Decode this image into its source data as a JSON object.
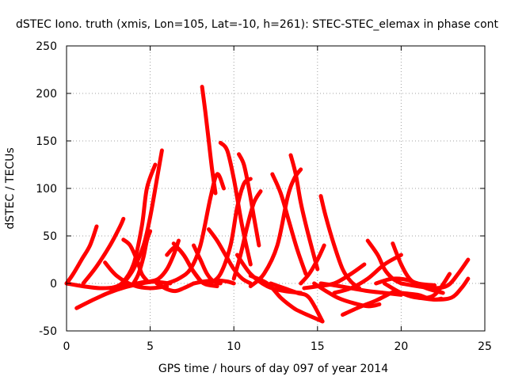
{
  "chart_data": {
    "type": "line",
    "title": "dSTEC Iono. truth (xmis, Lon=105, Lat=-10, h=261): STEC-STEC_elemax in phase cont",
    "xlabel": "GPS time / hours of day 097 of year 2014",
    "ylabel": "dSTEC  / TECUs",
    "xlim": [
      0,
      25
    ],
    "ylim": [
      -50,
      250
    ],
    "xticks": [
      0,
      5,
      10,
      15,
      20,
      25
    ],
    "yticks": [
      -50,
      0,
      50,
      100,
      150,
      200,
      250
    ],
    "grid": true,
    "series_color": "#ff0000",
    "series": [
      {
        "x": [
          0.0,
          0.4,
          0.9,
          1.4,
          1.8
        ],
        "y": [
          0,
          10,
          25,
          40,
          60
        ]
      },
      {
        "x": [
          1.0,
          1.8,
          2.6,
          3.2,
          3.4
        ],
        "y": [
          0,
          18,
          40,
          60,
          68
        ]
      },
      {
        "x": [
          0.0,
          1.0,
          2.0,
          3.0,
          4.2,
          5.0,
          6.2
        ],
        "y": [
          0,
          -3,
          -5,
          -4,
          0,
          2,
          0
        ]
      },
      {
        "x": [
          0.6,
          1.5,
          2.5,
          3.5,
          4.5,
          5.2
        ],
        "y": [
          -26,
          -18,
          -10,
          -4,
          0,
          2
        ]
      },
      {
        "x": [
          2.3,
          3.0,
          4.0,
          5.0,
          6.0
        ],
        "y": [
          22,
          8,
          -2,
          -5,
          -3
        ]
      },
      {
        "x": [
          3.4,
          3.8,
          4.2,
          4.5,
          4.8
        ],
        "y": [
          46,
          40,
          25,
          10,
          3
        ]
      },
      {
        "x": [
          2.6,
          3.3,
          4.0,
          4.5,
          4.8,
          5.3
        ],
        "y": [
          -5,
          0,
          20,
          60,
          100,
          125
        ]
      },
      {
        "x": [
          4.0,
          4.3,
          4.6,
          4.8,
          5.0
        ],
        "y": [
          0,
          10,
          28,
          45,
          55
        ]
      },
      {
        "x": [
          3.4,
          4.0,
          4.6,
          5.0,
          5.5,
          5.7
        ],
        "y": [
          0,
          15,
          40,
          70,
          120,
          140
        ]
      },
      {
        "x": [
          5.0,
          5.5,
          6.0,
          6.4,
          6.7
        ],
        "y": [
          2,
          5,
          15,
          30,
          45
        ]
      },
      {
        "x": [
          5.4,
          6.0,
          6.5,
          7.0,
          7.6
        ],
        "y": [
          0,
          -6,
          -8,
          -5,
          0
        ]
      },
      {
        "x": [
          6.0,
          6.5,
          7.0,
          7.5,
          8.0
        ],
        "y": [
          30,
          38,
          30,
          15,
          3
        ]
      },
      {
        "x": [
          6.4,
          7.0,
          7.6,
          8.2,
          9.0
        ],
        "y": [
          42,
          30,
          12,
          0,
          -3
        ]
      },
      {
        "x": [
          7.6,
          8.0,
          8.4,
          8.8,
          9.2
        ],
        "y": [
          40,
          25,
          10,
          2,
          0
        ]
      },
      {
        "x": [
          6.0,
          6.7,
          7.4,
          8.0,
          8.6,
          9.0,
          9.4
        ],
        "y": [
          0,
          5,
          15,
          40,
          90,
          115,
          100
        ]
      },
      {
        "x": [
          8.1,
          8.3,
          8.5,
          8.7,
          8.9
        ],
        "y": [
          207,
          180,
          150,
          120,
          95
        ]
      },
      {
        "x": [
          7.6,
          8.2,
          9.0,
          9.6,
          10.0
        ],
        "y": [
          0,
          2,
          3,
          2,
          0
        ]
      },
      {
        "x": [
          9.2,
          9.6,
          10.0,
          10.5,
          11.0
        ],
        "y": [
          148,
          140,
          110,
          60,
          20
        ]
      },
      {
        "x": [
          8.5,
          9.0,
          9.5,
          10.0,
          10.5,
          11.0
        ],
        "y": [
          57,
          45,
          30,
          15,
          5,
          0
        ]
      },
      {
        "x": [
          10.3,
          10.6,
          10.9,
          11.2,
          11.5
        ],
        "y": [
          136,
          125,
          100,
          70,
          40
        ]
      },
      {
        "x": [
          8.6,
          9.2,
          9.8,
          10.2,
          10.6,
          11.0
        ],
        "y": [
          0,
          10,
          40,
          80,
          105,
          110
        ]
      },
      {
        "x": [
          10.0,
          10.4,
          10.8,
          11.2,
          11.6
        ],
        "y": [
          5,
          30,
          60,
          85,
          97
        ]
      },
      {
        "x": [
          10.2,
          11.0,
          12.0,
          13.0,
          14.0
        ],
        "y": [
          30,
          10,
          -3,
          -8,
          -10
        ]
      },
      {
        "x": [
          11.0,
          12.0,
          12.8,
          13.5,
          14.0,
          15.3
        ],
        "y": [
          8,
          0,
          -15,
          -25,
          -30,
          -40
        ]
      },
      {
        "x": [
          12.3,
          12.8,
          13.3,
          13.8,
          14.3
        ],
        "y": [
          115,
          95,
          65,
          35,
          10
        ]
      },
      {
        "x": [
          11.0,
          11.8,
          12.6,
          13.2,
          13.6,
          14.0
        ],
        "y": [
          -3,
          10,
          40,
          90,
          110,
          120
        ]
      },
      {
        "x": [
          13.4,
          13.7,
          14.0,
          14.4,
          15.0
        ],
        "y": [
          135,
          115,
          85,
          55,
          15
        ]
      },
      {
        "x": [
          12.2,
          13.0,
          13.8,
          14.5,
          15.3
        ],
        "y": [
          0,
          -5,
          -10,
          -15,
          -40
        ]
      },
      {
        "x": [
          14.0,
          14.5,
          15.0,
          15.4
        ],
        "y": [
          0,
          10,
          25,
          40
        ]
      },
      {
        "x": [
          15.2,
          15.5,
          16.0,
          16.5,
          17.0,
          17.5
        ],
        "y": [
          92,
          70,
          40,
          15,
          2,
          -5
        ]
      },
      {
        "x": [
          14.8,
          15.5,
          16.2,
          17.0,
          18.0,
          18.7
        ],
        "y": [
          0,
          -8,
          -15,
          -20,
          -24,
          -22
        ]
      },
      {
        "x": [
          14.2,
          15.0,
          16.0,
          17.0,
          17.8
        ],
        "y": [
          -5,
          -3,
          0,
          10,
          20
        ]
      },
      {
        "x": [
          15.2,
          16.0,
          17.0,
          18.0,
          19.0,
          20.0
        ],
        "y": [
          0,
          -2,
          -5,
          -8,
          -10,
          -12
        ]
      },
      {
        "x": [
          16.0,
          17.0,
          18.0,
          19.0,
          20.0
        ],
        "y": [
          -10,
          -5,
          5,
          20,
          30
        ]
      },
      {
        "x": [
          16.5,
          17.5,
          18.5,
          19.4,
          19.7
        ],
        "y": [
          -33,
          -25,
          -18,
          -10,
          -8
        ]
      },
      {
        "x": [
          18.0,
          18.6,
          19.0,
          19.5,
          20.0
        ],
        "y": [
          45,
          30,
          15,
          5,
          0
        ]
      },
      {
        "x": [
          18.5,
          19.5,
          20.5,
          21.5,
          22.5
        ],
        "y": [
          0,
          5,
          3,
          -5,
          -10
        ]
      },
      {
        "x": [
          19.5,
          20.0,
          20.5,
          21.0,
          22.0
        ],
        "y": [
          42,
          20,
          5,
          0,
          -2
        ]
      },
      {
        "x": [
          20.0,
          21.0,
          21.5,
          22.0,
          22.4
        ],
        "y": [
          -10,
          -12,
          -15,
          -17,
          -16
        ]
      },
      {
        "x": [
          19.0,
          20.0,
          21.0,
          22.0,
          22.9
        ],
        "y": [
          0,
          -10,
          -15,
          -12,
          10
        ]
      },
      {
        "x": [
          20.0,
          21.0,
          22.0,
          22.8,
          23.4,
          24.0
        ],
        "y": [
          0,
          -3,
          -5,
          -2,
          10,
          25
        ]
      },
      {
        "x": [
          21.0,
          22.0,
          23.0,
          23.6,
          24.0
        ],
        "y": [
          -15,
          -17,
          -15,
          -5,
          5
        ]
      }
    ]
  }
}
